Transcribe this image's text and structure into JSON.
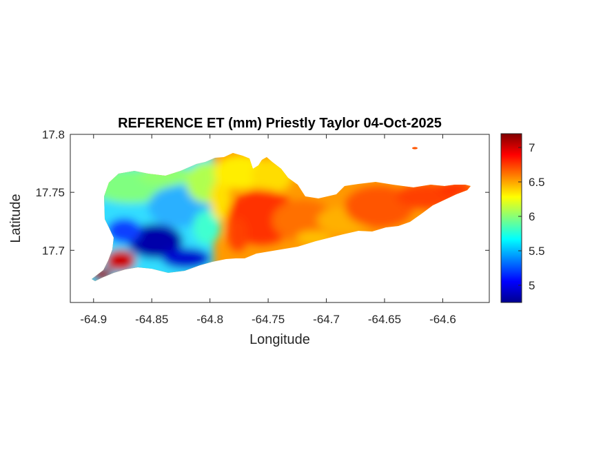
{
  "figure": {
    "title": "REFERENCE ET (mm) Priestly Taylor 04-Oct-2025",
    "xlabel": "Longitude",
    "ylabel": "Latitude"
  },
  "chart_data": {
    "type": "heatmap",
    "title": "REFERENCE ET (mm) Priestly Taylor 04-Oct-2025",
    "xlabel": "Longitude",
    "ylabel": "Latitude",
    "xlim": [
      -64.92,
      -64.56
    ],
    "ylim": [
      17.655,
      17.8
    ],
    "x_ticks": [
      -64.9,
      -64.85,
      -64.8,
      -64.75,
      -64.7,
      -64.65,
      -64.6
    ],
    "x_tick_labels": [
      "-64.9",
      "-64.85",
      "-64.8",
      "-64.75",
      "-64.7",
      "-64.65",
      "-64.6"
    ],
    "y_ticks": [
      17.7,
      17.75,
      17.8
    ],
    "y_tick_labels": [
      "17.7",
      "17.75",
      "17.8"
    ],
    "grid": false,
    "colormap": "jet",
    "colorbar": {
      "range": [
        4.75,
        7.2
      ],
      "ticks": [
        5,
        5.5,
        6,
        6.5,
        7
      ],
      "tick_labels": [
        "5",
        "5.5",
        "6",
        "6.5",
        "7"
      ]
    },
    "value_range_shown": [
      4.75,
      7.2
    ],
    "spatial_pattern_samples": [
      {
        "lon": -64.895,
        "lat": 17.68,
        "value": 7.2
      },
      {
        "lon": -64.875,
        "lat": 17.695,
        "value": 7.1
      },
      {
        "lon": -64.86,
        "lat": 17.745,
        "value": 6.0
      },
      {
        "lon": -64.855,
        "lat": 17.73,
        "value": 5.6
      },
      {
        "lon": -64.845,
        "lat": 17.708,
        "value": 4.85
      },
      {
        "lon": -64.825,
        "lat": 17.695,
        "value": 5.0
      },
      {
        "lon": -64.82,
        "lat": 17.73,
        "value": 5.5
      },
      {
        "lon": -64.8,
        "lat": 17.745,
        "value": 6.1
      },
      {
        "lon": -64.78,
        "lat": 17.765,
        "value": 6.3
      },
      {
        "lon": -64.755,
        "lat": 17.77,
        "value": 6.35
      },
      {
        "lon": -64.75,
        "lat": 17.72,
        "value": 6.9
      },
      {
        "lon": -64.72,
        "lat": 17.73,
        "value": 6.7
      },
      {
        "lon": -64.68,
        "lat": 17.72,
        "value": 6.6
      },
      {
        "lon": -64.65,
        "lat": 17.745,
        "value": 6.75
      },
      {
        "lon": -64.61,
        "lat": 17.75,
        "value": 6.9
      },
      {
        "lon": -64.575,
        "lat": 17.753,
        "value": 7.0
      },
      {
        "lon": -64.625,
        "lat": 17.787,
        "value": 6.8
      }
    ]
  }
}
